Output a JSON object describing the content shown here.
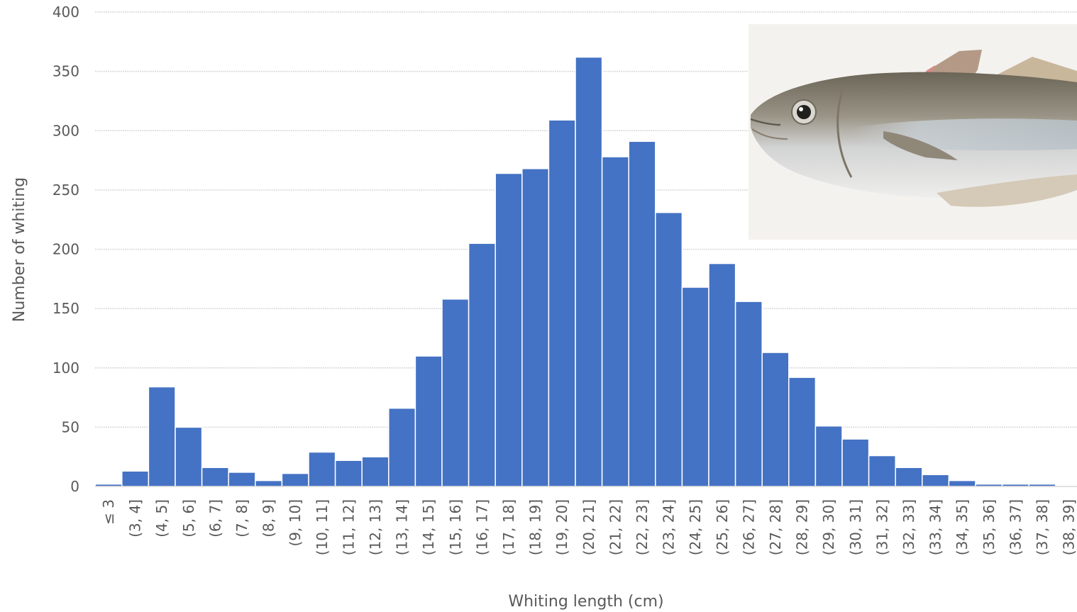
{
  "chart_data": {
    "type": "bar",
    "xlabel": "Whiting length (cm)",
    "ylabel": "Number of whiting",
    "ylim": [
      0,
      400
    ],
    "yticks": [
      0,
      50,
      100,
      150,
      200,
      250,
      300,
      350,
      400
    ],
    "grid": true,
    "bar_color": "#4472c4",
    "categories": [
      "≤ 3",
      "(3, 4]",
      "(4, 5]",
      "(5, 6]",
      "(6, 7]",
      "(7, 8]",
      "(8, 9]",
      "(9, 10]",
      "(10, 11]",
      "(11, 12]",
      "(12, 13]",
      "(13, 14]",
      "(14, 15]",
      "(15, 16]",
      "(16, 17]",
      "(17, 18]",
      "(18, 19]",
      "(19, 20]",
      "(20, 21]",
      "(21, 22]",
      "(22, 23]",
      "(23, 24]",
      "(24, 25]",
      "(25, 26]",
      "(26, 27]",
      "(27, 28]",
      "(28, 29]",
      "(29, 30]",
      "(30, 31]",
      "(31, 32]",
      "(32, 33]",
      "(33, 34]",
      "(34, 35]",
      "(35, 36]",
      "(36, 37]",
      "(37, 38]",
      "(38, 39]"
    ],
    "values": [
      2,
      13,
      84,
      50,
      16,
      12,
      5,
      11,
      29,
      22,
      25,
      66,
      110,
      158,
      205,
      264,
      268,
      309,
      362,
      278,
      291,
      231,
      168,
      188,
      156,
      113,
      92,
      51,
      40,
      26,
      16,
      10,
      5,
      2,
      2,
      2,
      0
    ]
  },
  "inset_photo": {
    "subject": "whiting-fish-icon"
  }
}
